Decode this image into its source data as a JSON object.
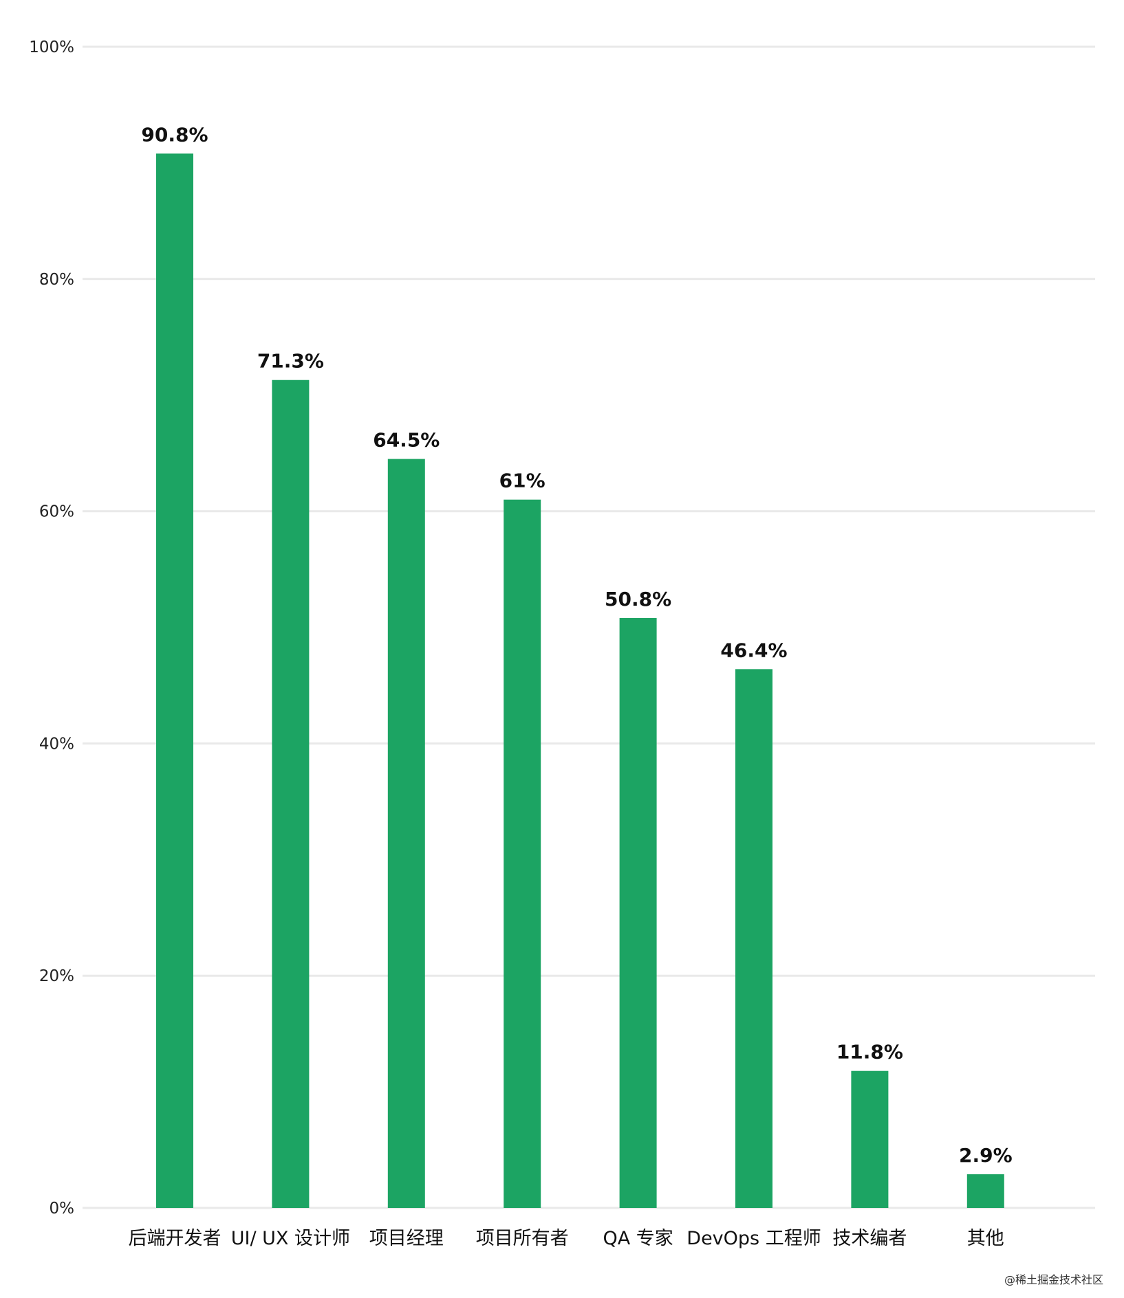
{
  "chart_data": {
    "type": "bar",
    "categories": [
      "后端开发者",
      "UI/ UX 设计师",
      "项目经理",
      "项目所有者",
      "QA 专家",
      "DevOps 工程师",
      "技术编者",
      "其他"
    ],
    "values": [
      90.8,
      71.3,
      64.5,
      61,
      50.8,
      46.4,
      11.8,
      2.9
    ],
    "data_labels": [
      "90.8%",
      "71.3%",
      "64.5%",
      "61%",
      "50.8%",
      "46.4%",
      "11.8%",
      "2.9%"
    ],
    "ylim": [
      0,
      100
    ],
    "yticks": [
      0,
      20,
      40,
      60,
      80,
      100
    ],
    "ytick_labels": [
      "0%",
      "20%",
      "40%",
      "60%",
      "80%",
      "100%"
    ],
    "grid": true,
    "bar_color": "#1ca463",
    "title": "",
    "xlabel": "",
    "ylabel": ""
  },
  "watermark": "@稀土掘金技术社区"
}
